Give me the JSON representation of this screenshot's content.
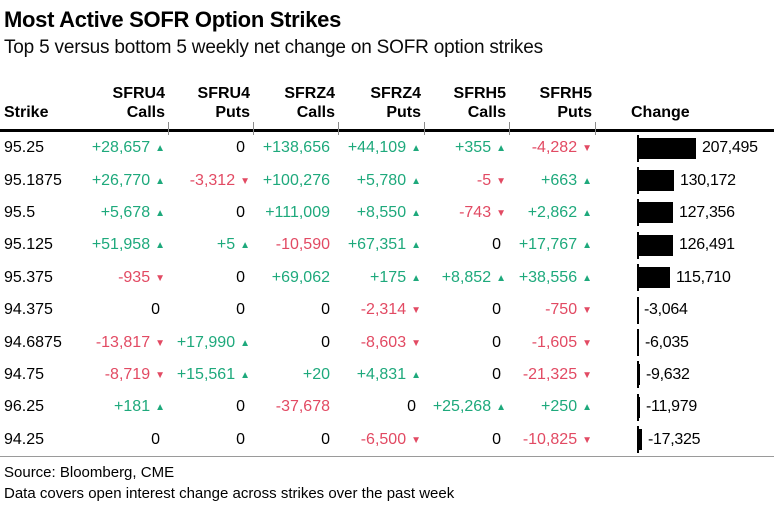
{
  "header": {
    "title": "Most Active SOFR Option Strikes",
    "subtitle": "Top 5 versus bottom 5 weekly net change on SOFR option strikes"
  },
  "colors": {
    "positive": "#1ea97c",
    "negative": "#e24a63",
    "bar": "#000000"
  },
  "icons": {
    "up_arrow": "▲",
    "down_arrow": "▼"
  },
  "table": {
    "strike_header": "Strike",
    "change_header": "Change",
    "column_groups": [
      {
        "ticker": "SFRU4",
        "type": "Calls"
      },
      {
        "ticker": "SFRU4",
        "type": "Puts"
      },
      {
        "ticker": "SFRZ4",
        "type": "Calls"
      },
      {
        "ticker": "SFRZ4",
        "type": "Puts"
      },
      {
        "ticker": "SFRH5",
        "type": "Calls"
      },
      {
        "ticker": "SFRH5",
        "type": "Puts"
      }
    ],
    "rows": [
      {
        "strike": "95.25",
        "cells": [
          {
            "v": "+28,657",
            "arrow": "up"
          },
          {
            "v": "0",
            "arrow": "none"
          },
          {
            "v": "+138,656",
            "arrow": "none"
          },
          {
            "v": "+44,109",
            "arrow": "up"
          },
          {
            "v": "+355",
            "arrow": "up"
          },
          {
            "v": "-4,282",
            "arrow": "down"
          }
        ],
        "change": 207495,
        "change_label": "207,495"
      },
      {
        "strike": "95.1875",
        "cells": [
          {
            "v": "+26,770",
            "arrow": "up"
          },
          {
            "v": "-3,312",
            "arrow": "down"
          },
          {
            "v": "+100,276",
            "arrow": "none"
          },
          {
            "v": "+5,780",
            "arrow": "up"
          },
          {
            "v": "-5",
            "arrow": "down"
          },
          {
            "v": "+663",
            "arrow": "up"
          }
        ],
        "change": 130172,
        "change_label": "130,172"
      },
      {
        "strike": "95.5",
        "cells": [
          {
            "v": "+5,678",
            "arrow": "up"
          },
          {
            "v": "0",
            "arrow": "none"
          },
          {
            "v": "+111,009",
            "arrow": "none"
          },
          {
            "v": "+8,550",
            "arrow": "up"
          },
          {
            "v": "-743",
            "arrow": "down"
          },
          {
            "v": "+2,862",
            "arrow": "up"
          }
        ],
        "change": 127356,
        "change_label": "127,356"
      },
      {
        "strike": "95.125",
        "cells": [
          {
            "v": "+51,958",
            "arrow": "up"
          },
          {
            "v": "+5",
            "arrow": "up"
          },
          {
            "v": "-10,590",
            "arrow": "none"
          },
          {
            "v": "+67,351",
            "arrow": "up"
          },
          {
            "v": "0",
            "arrow": "none"
          },
          {
            "v": "+17,767",
            "arrow": "up"
          }
        ],
        "change": 126491,
        "change_label": "126,491"
      },
      {
        "strike": "95.375",
        "cells": [
          {
            "v": "-935",
            "arrow": "down"
          },
          {
            "v": "0",
            "arrow": "none"
          },
          {
            "v": "+69,062",
            "arrow": "none"
          },
          {
            "v": "+175",
            "arrow": "up"
          },
          {
            "v": "+8,852",
            "arrow": "up"
          },
          {
            "v": "+38,556",
            "arrow": "up"
          }
        ],
        "change": 115710,
        "change_label": "115,710"
      },
      {
        "strike": "94.375",
        "cells": [
          {
            "v": "0",
            "arrow": "none"
          },
          {
            "v": "0",
            "arrow": "none"
          },
          {
            "v": "0",
            "arrow": "none"
          },
          {
            "v": "-2,314",
            "arrow": "down"
          },
          {
            "v": "0",
            "arrow": "none"
          },
          {
            "v": "-750",
            "arrow": "down"
          }
        ],
        "change": -3064,
        "change_label": "-3,064"
      },
      {
        "strike": "94.6875",
        "cells": [
          {
            "v": "-13,817",
            "arrow": "down"
          },
          {
            "v": "+17,990",
            "arrow": "up"
          },
          {
            "v": "0",
            "arrow": "none"
          },
          {
            "v": "-8,603",
            "arrow": "down"
          },
          {
            "v": "0",
            "arrow": "none"
          },
          {
            "v": "-1,605",
            "arrow": "down"
          }
        ],
        "change": -6035,
        "change_label": "-6,035"
      },
      {
        "strike": "94.75",
        "cells": [
          {
            "v": "-8,719",
            "arrow": "down"
          },
          {
            "v": "+15,561",
            "arrow": "up"
          },
          {
            "v": "+20",
            "arrow": "none"
          },
          {
            "v": "+4,831",
            "arrow": "up"
          },
          {
            "v": "0",
            "arrow": "none"
          },
          {
            "v": "-21,325",
            "arrow": "down"
          }
        ],
        "change": -9632,
        "change_label": "-9,632"
      },
      {
        "strike": "96.25",
        "cells": [
          {
            "v": "+181",
            "arrow": "up"
          },
          {
            "v": "0",
            "arrow": "none"
          },
          {
            "v": "-37,678",
            "arrow": "none"
          },
          {
            "v": "0",
            "arrow": "none"
          },
          {
            "v": "+25,268",
            "arrow": "up"
          },
          {
            "v": "+250",
            "arrow": "up"
          }
        ],
        "change": -11979,
        "change_label": "-11,979"
      },
      {
        "strike": "94.25",
        "cells": [
          {
            "v": "0",
            "arrow": "none"
          },
          {
            "v": "0",
            "arrow": "none"
          },
          {
            "v": "0",
            "arrow": "none"
          },
          {
            "v": "-6,500",
            "arrow": "down"
          },
          {
            "v": "0",
            "arrow": "none"
          },
          {
            "v": "-10,825",
            "arrow": "down"
          }
        ],
        "change": -17325,
        "change_label": "-17,325"
      }
    ]
  },
  "footer": {
    "source": "Source: Bloomberg, CME",
    "note": "Data covers open interest change across strikes over the past week"
  },
  "chart_data": {
    "type": "bar",
    "orientation": "horizontal",
    "title": "Most Active SOFR Option Strikes",
    "subtitle": "Top 5 versus bottom 5 weekly net change on SOFR option strikes",
    "categories": [
      "95.25",
      "95.1875",
      "95.5",
      "95.125",
      "95.375",
      "94.375",
      "94.6875",
      "94.75",
      "96.25",
      "94.25"
    ],
    "values": [
      207495,
      130172,
      127356,
      126491,
      115710,
      -3064,
      -6035,
      -9632,
      -11979,
      -17325
    ],
    "bar_series_name": "Change",
    "xlim": [
      0,
      207495
    ],
    "grid": false,
    "legend": "none",
    "series": [
      {
        "name": "SFRU4 Calls",
        "values": [
          28657,
          26770,
          5678,
          51958,
          -935,
          0,
          -13817,
          -8719,
          181,
          0
        ]
      },
      {
        "name": "SFRU4 Puts",
        "values": [
          0,
          -3312,
          0,
          5,
          0,
          0,
          17990,
          15561,
          0,
          0
        ]
      },
      {
        "name": "SFRZ4 Calls",
        "values": [
          138656,
          100276,
          111009,
          -10590,
          69062,
          0,
          0,
          20,
          -37678,
          0
        ]
      },
      {
        "name": "SFRZ4 Puts",
        "values": [
          44109,
          5780,
          8550,
          67351,
          175,
          -2314,
          -8603,
          4831,
          0,
          -6500
        ]
      },
      {
        "name": "SFRH5 Calls",
        "values": [
          355,
          -5,
          -743,
          0,
          8852,
          0,
          0,
          0,
          25268,
          0
        ]
      },
      {
        "name": "SFRH5 Puts",
        "values": [
          -4282,
          663,
          2862,
          17767,
          38556,
          -750,
          -1605,
          -21325,
          250,
          -10825
        ]
      }
    ]
  }
}
